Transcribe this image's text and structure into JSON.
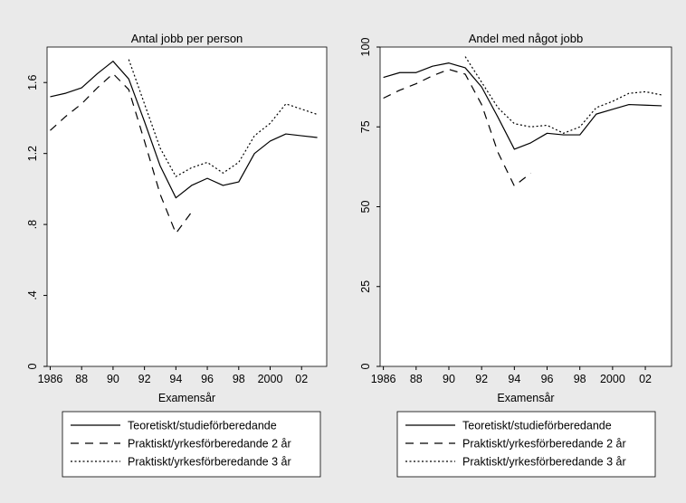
{
  "chart_data": [
    {
      "type": "line",
      "title": "Antal jobb per person",
      "xlabel": "Examensår",
      "ylabel": "",
      "xlim": [
        1985.8,
        2003.6
      ],
      "ylim": [
        0,
        1.8
      ],
      "xticks": [
        1986,
        1988,
        1990,
        1992,
        1994,
        1996,
        1998,
        2000,
        2002
      ],
      "xtick_labels": [
        "1986",
        "88",
        "90",
        "92",
        "94",
        "96",
        "98",
        "2000",
        "02"
      ],
      "yticks": [
        0,
        0.4,
        0.8,
        1.2,
        1.6
      ],
      "ytick_labels": [
        "0",
        ".4",
        ".8",
        "1.2",
        "1.6"
      ],
      "grid": false,
      "legend_position": "bottom",
      "series": [
        {
          "name": "Teoretiskt/studieförberedande",
          "style": "solid",
          "x": [
            1986,
            1987,
            1988,
            1989,
            1990,
            1991,
            1992,
            1993,
            1994,
            1995,
            1996,
            1997,
            1998,
            1999,
            2000,
            2001,
            2002,
            2003
          ],
          "y": [
            1.52,
            1.54,
            1.57,
            1.65,
            1.72,
            1.62,
            1.38,
            1.13,
            0.95,
            1.02,
            1.06,
            1.02,
            1.04,
            1.2,
            1.27,
            1.31,
            1.3,
            1.29
          ]
        },
        {
          "name": "Praktiskt/yrkesförberedande 2 år",
          "style": "longdash",
          "x": [
            1986,
            1987,
            1988,
            1989,
            1990,
            1991,
            1992,
            1993,
            1994,
            1995
          ],
          "y": [
            1.33,
            1.41,
            1.48,
            1.57,
            1.65,
            1.56,
            1.27,
            0.97,
            0.75,
            0.87
          ]
        },
        {
          "name": "Praktiskt/yrkesförberedande 3 år",
          "style": "dotted",
          "x": [
            1991,
            1992,
            1993,
            1994,
            1995,
            1996,
            1997,
            1998,
            1999,
            2000,
            2001,
            2002,
            2003
          ],
          "y": [
            1.73,
            1.48,
            1.23,
            1.07,
            1.12,
            1.15,
            1.09,
            1.15,
            1.3,
            1.37,
            1.48,
            1.45,
            1.42
          ]
        }
      ]
    },
    {
      "type": "line",
      "title": "Andel med något jobb",
      "xlabel": "Examensår",
      "ylabel": "",
      "xlim": [
        1985.8,
        2003.6
      ],
      "ylim": [
        0,
        100
      ],
      "xticks": [
        1986,
        1988,
        1990,
        1992,
        1994,
        1996,
        1998,
        2000,
        2002
      ],
      "xtick_labels": [
        "1986",
        "88",
        "90",
        "92",
        "94",
        "96",
        "98",
        "2000",
        "02"
      ],
      "yticks": [
        0,
        25,
        50,
        75,
        100
      ],
      "ytick_labels": [
        "0",
        "25",
        "50",
        "75",
        "100"
      ],
      "grid": false,
      "legend_position": "bottom",
      "series": [
        {
          "name": "Teoretiskt/studieförberedande",
          "style": "solid",
          "x": [
            1986,
            1987,
            1988,
            1989,
            1990,
            1991,
            1992,
            1993,
            1994,
            1995,
            1996,
            1997,
            1998,
            1999,
            2000,
            2001,
            2002,
            2003
          ],
          "y": [
            90.5,
            92,
            92,
            94,
            95,
            93.5,
            87.5,
            78,
            68,
            70,
            73,
            72.5,
            72.5,
            79,
            80.5,
            82,
            81.8,
            81.6
          ]
        },
        {
          "name": "Praktiskt/yrkesförberedande 2 år",
          "style": "longdash",
          "x": [
            1986,
            1987,
            1988,
            1989,
            1990,
            1991,
            1992,
            1993,
            1994,
            1995
          ],
          "y": [
            84,
            86.5,
            88.5,
            91,
            93,
            91.5,
            82,
            67,
            56.5,
            60.5
          ]
        },
        {
          "name": "Praktiskt/yrkesförberedande 3 år",
          "style": "dotted",
          "x": [
            1991,
            1992,
            1993,
            1994,
            1995,
            1996,
            1997,
            1998,
            1999,
            2000,
            2001,
            2002,
            2003
          ],
          "y": [
            97,
            89,
            81,
            76,
            75,
            75.5,
            73,
            75,
            81,
            83,
            85.5,
            86,
            85
          ]
        }
      ]
    }
  ]
}
